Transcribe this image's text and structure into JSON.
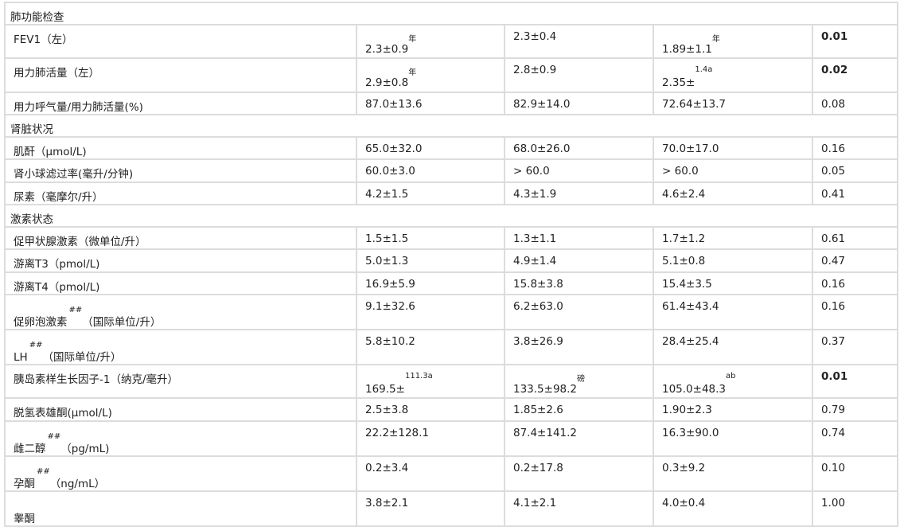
{
  "rows": [
    {
      "section": "肺功能检查"
    },
    {
      "label": "FEV1（左）",
      "cells": [
        {
          "v": "2.3±0.9",
          "sup": "年"
        },
        {
          "v": "2.3±0.4"
        },
        {
          "v": "1.89±1.1",
          "sup": "年"
        }
      ],
      "p": "0.01",
      "p_bold": true
    },
    {
      "label": "用力肺活量（左）",
      "cells": [
        {
          "v": "2.9±0.8",
          "sup": "年"
        },
        {
          "v": "2.8±0.9"
        },
        {
          "v": "2.35±",
          "sup": "1.4a"
        }
      ],
      "p": "0.02",
      "p_bold": true
    },
    {
      "label": "用力呼气量/用力肺活量(%)",
      "cells": [
        {
          "v": "87.0±13.6"
        },
        {
          "v": "82.9±14.0"
        },
        {
          "v": "72.64±13.7"
        }
      ],
      "p": "0.08"
    },
    {
      "section": "肾脏状况"
    },
    {
      "label": "肌酐（μmol/L)",
      "cells": [
        {
          "v": "65.0±32.0"
        },
        {
          "v": "68.0±26.0"
        },
        {
          "v": "70.0±17.0"
        }
      ],
      "p": "0.16"
    },
    {
      "label": "肾小球滤过率(毫升/分钟)",
      "cells": [
        {
          "v": "60.0±3.0"
        },
        {
          "v": "> 60.0"
        },
        {
          "v": "> 60.0"
        }
      ],
      "p": "0.05"
    },
    {
      "label": "尿素（毫摩尔/升）",
      "cells": [
        {
          "v": "4.2±1.5"
        },
        {
          "v": "4.3±1.9"
        },
        {
          "v": "4.6±2.4"
        }
      ],
      "p": "0.41"
    },
    {
      "section": "激素状态"
    },
    {
      "label": "促甲状腺激素（微单位/升）",
      "cells": [
        {
          "v": "1.5±1.5"
        },
        {
          "v": "1.3±1.1"
        },
        {
          "v": "1.7±1.2"
        }
      ],
      "p": "0.61"
    },
    {
      "label": "游离T3（pmol/L)",
      "cells": [
        {
          "v": "5.0±1.3"
        },
        {
          "v": "4.9±1.4"
        },
        {
          "v": "5.1±0.8"
        }
      ],
      "p": "0.47"
    },
    {
      "label": "游离T4（pmol/L)",
      "cells": [
        {
          "v": "16.9±5.9"
        },
        {
          "v": "15.8±3.8"
        },
        {
          "v": "15.4±3.5"
        }
      ],
      "p": "0.16"
    },
    {
      "label": "促卵泡激素",
      "label_sup": "##",
      "label_suffix": "（国际单位/升）",
      "cells": [
        {
          "v": "9.1±32.6"
        },
        {
          "v": "6.2±63.0"
        },
        {
          "v": "61.4±43.4"
        }
      ],
      "p": "0.16"
    },
    {
      "label": "LH",
      "label_sup": "##",
      "label_suffix": "（国际单位/升）",
      "cells": [
        {
          "v": "5.8±10.2"
        },
        {
          "v": "3.8±26.9"
        },
        {
          "v": "28.4±25.4"
        }
      ],
      "p": "0.37"
    },
    {
      "label": "胰岛素样生长因子-1（纳克/毫升）",
      "cells": [
        {
          "v": "169.5±",
          "sup": "111.3a"
        },
        {
          "v": "133.5±98.2",
          "sup": "磅"
        },
        {
          "v": "105.0±48.3",
          "sup": "ab"
        }
      ],
      "p": "0.01",
      "p_bold": true
    },
    {
      "label": "脱氢表雄酮(μmol/L)",
      "cells": [
        {
          "v": "2.5±3.8"
        },
        {
          "v": "1.85±2.6"
        },
        {
          "v": "1.90±2.3"
        }
      ],
      "p": "0.79"
    },
    {
      "label": "雌二醇",
      "label_sup": "##",
      "label_suffix": "（pg/mL)",
      "cells": [
        {
          "v": "22.2±128.1"
        },
        {
          "v": "87.4±141.2"
        },
        {
          "v": "16.3±90.0"
        }
      ],
      "p": "0.74"
    },
    {
      "label": "孕酮",
      "label_sup": "##",
      "label_suffix": "（ng/mL）",
      "cells": [
        {
          "v": "0.2±3.4"
        },
        {
          "v": "0.2±17.8"
        },
        {
          "v": "0.3±9.2"
        }
      ],
      "p": "0.10"
    },
    {
      "label": "睾酮",
      "label_low": true,
      "cells": [
        {
          "v": "3.8±2.1"
        },
        {
          "v": "4.1±2.1"
        },
        {
          "v": "4.0±0.4"
        }
      ],
      "p": "1.00"
    }
  ]
}
